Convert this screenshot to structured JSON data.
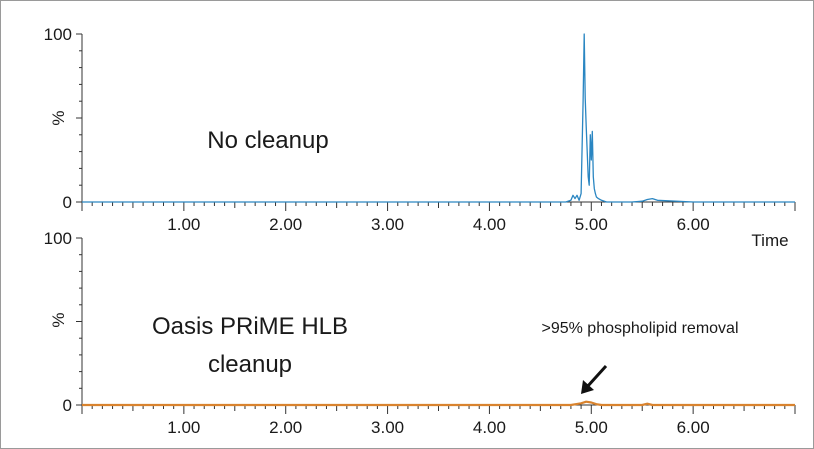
{
  "chart_data": [
    {
      "type": "line",
      "annotation": "No cleanup",
      "ylabel": "%",
      "xlabel": "Time",
      "xlim": [
        0,
        7
      ],
      "ylim": [
        0,
        100
      ],
      "yticks": [
        {
          "value": 0,
          "label": "0"
        },
        {
          "value": 100,
          "label": "100"
        }
      ],
      "xticks": [
        {
          "value": 1,
          "label": "1.00"
        },
        {
          "value": 2,
          "label": "2.00"
        },
        {
          "value": 3,
          "label": "3.00"
        },
        {
          "value": 4,
          "label": "4.00"
        },
        {
          "value": 5,
          "label": "5.00"
        },
        {
          "value": 6,
          "label": "6.00"
        }
      ],
      "color": "#2a86c2",
      "series": [
        {
          "x": [
            0.0,
            1.0,
            2.0,
            3.0,
            4.0,
            4.75,
            4.8,
            4.82,
            4.84,
            4.86,
            4.88,
            4.9,
            4.92,
            4.93,
            4.94,
            4.95,
            4.96,
            4.97,
            4.98,
            4.99,
            5.0,
            5.01,
            5.02,
            5.03,
            5.04,
            5.05,
            5.07,
            5.1,
            5.15,
            5.2,
            5.4,
            5.5,
            5.55,
            5.6,
            5.65,
            6.0,
            7.0
          ],
          "y": [
            0,
            0,
            0,
            0,
            0,
            0,
            1,
            4,
            2,
            4,
            1,
            5,
            60,
            100,
            62,
            45,
            30,
            15,
            10,
            40,
            25,
            42,
            15,
            8,
            5,
            3,
            2,
            1,
            0,
            0,
            0,
            0.5,
            1.5,
            2,
            1,
            0,
            0
          ]
        }
      ]
    },
    {
      "type": "line",
      "annotation_lines": [
        "Oasis PRiME HLB",
        "cleanup"
      ],
      "callout": ">95% phospholipid removal",
      "ylabel": "%",
      "xlabel": "",
      "xlim": [
        0,
        7
      ],
      "ylim": [
        0,
        100
      ],
      "yticks": [
        {
          "value": 0,
          "label": "0"
        },
        {
          "value": 100,
          "label": "100"
        }
      ],
      "xticks": [
        {
          "value": 1,
          "label": "1.00"
        },
        {
          "value": 2,
          "label": "2.00"
        },
        {
          "value": 3,
          "label": "3.00"
        },
        {
          "value": 4,
          "label": "4.00"
        },
        {
          "value": 5,
          "label": "5.00"
        },
        {
          "value": 6,
          "label": "6.00"
        }
      ],
      "color": "#d9832e",
      "series": [
        {
          "x": [
            0.0,
            1.0,
            2.0,
            3.0,
            4.0,
            4.8,
            4.9,
            4.95,
            5.0,
            5.05,
            5.1,
            5.5,
            5.55,
            5.6,
            6.0,
            7.0
          ],
          "y": [
            0,
            0,
            0,
            0,
            0,
            0,
            1,
            2,
            1.5,
            0.5,
            0,
            0,
            0.8,
            0,
            0,
            0
          ]
        }
      ]
    }
  ]
}
